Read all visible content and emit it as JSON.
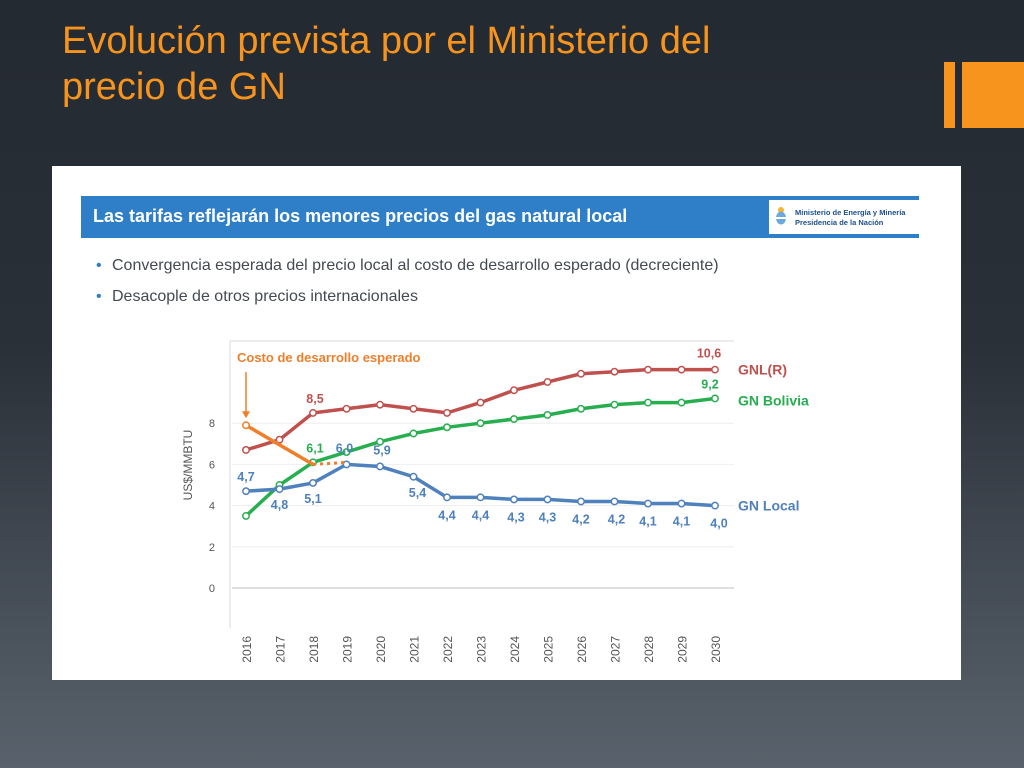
{
  "slide": {
    "title_line1": "Evolución prevista por el Ministerio del",
    "title_line2": "precio de GN",
    "accent_color": "#f7941d"
  },
  "panel": {
    "banner_title": "Las tarifas reflejarán los menores precios del gas natural local",
    "banner_color": "#2e7ec8",
    "ministry_line1": "Ministerio de Energía y Minería",
    "ministry_line2": "Presidencia de la Nación",
    "ministry_icon": "argentina-coat-of-arms-icon",
    "bullets": [
      "Convergencia esperada del precio local al costo de desarrollo esperado (decreciente)",
      "Desacople de otros precios internacionales"
    ]
  },
  "chart_data": {
    "type": "line",
    "ylabel": "US$/MMBTU",
    "xlabel": "",
    "ylim": [
      0,
      10
    ],
    "yticks": [
      0,
      2,
      4,
      6,
      8
    ],
    "categories": [
      "2016",
      "2017",
      "2018",
      "2019",
      "2020",
      "2021",
      "2022",
      "2023",
      "2024",
      "2025",
      "2026",
      "2027",
      "2028",
      "2029",
      "2030"
    ],
    "series": [
      {
        "name": "GNL(R)",
        "color": "#c0504d",
        "values": [
          6.7,
          7.2,
          8.5,
          8.7,
          8.9,
          8.7,
          8.5,
          9.0,
          9.6,
          10.0,
          10.4,
          10.5,
          10.6,
          10.6,
          10.6
        ],
        "labels": {
          "2018": "8,5",
          "2030": "10,6"
        }
      },
      {
        "name": "GN Bolivia",
        "color": "#27ae4f",
        "values": [
          3.5,
          5.0,
          6.1,
          6.6,
          7.1,
          7.5,
          7.8,
          8.0,
          8.2,
          8.4,
          8.7,
          8.9,
          9.0,
          9.0,
          9.2
        ],
        "labels": {
          "2018": "6,1",
          "2030": "9,2"
        }
      },
      {
        "name": "GN Local",
        "color": "#4f81bd",
        "values": [
          4.7,
          4.8,
          5.1,
          6.0,
          5.9,
          5.4,
          4.4,
          4.4,
          4.3,
          4.3,
          4.2,
          4.2,
          4.1,
          4.1,
          4.0
        ],
        "labels": {
          "2016": "4,7",
          "2017": "4,8",
          "2018": "5,1",
          "2019": "6,0",
          "2020": "5,9",
          "2021": "5,4",
          "2022": "4,4",
          "2023": "4,4",
          "2024": "4,3",
          "2025": "4,3",
          "2026": "4,2",
          "2027": "4,2",
          "2028": "4,1",
          "2029": "4,1",
          "2030": "4,0"
        }
      },
      {
        "name": "Costo de desarrollo esperado",
        "color": "#f07f2a",
        "x": [
          "2016",
          "2018"
        ],
        "values": [
          7.9,
          6.0
        ],
        "dotted_end": "2019"
      }
    ],
    "annotation": "Costo de desarrollo esperado",
    "grid": true
  }
}
